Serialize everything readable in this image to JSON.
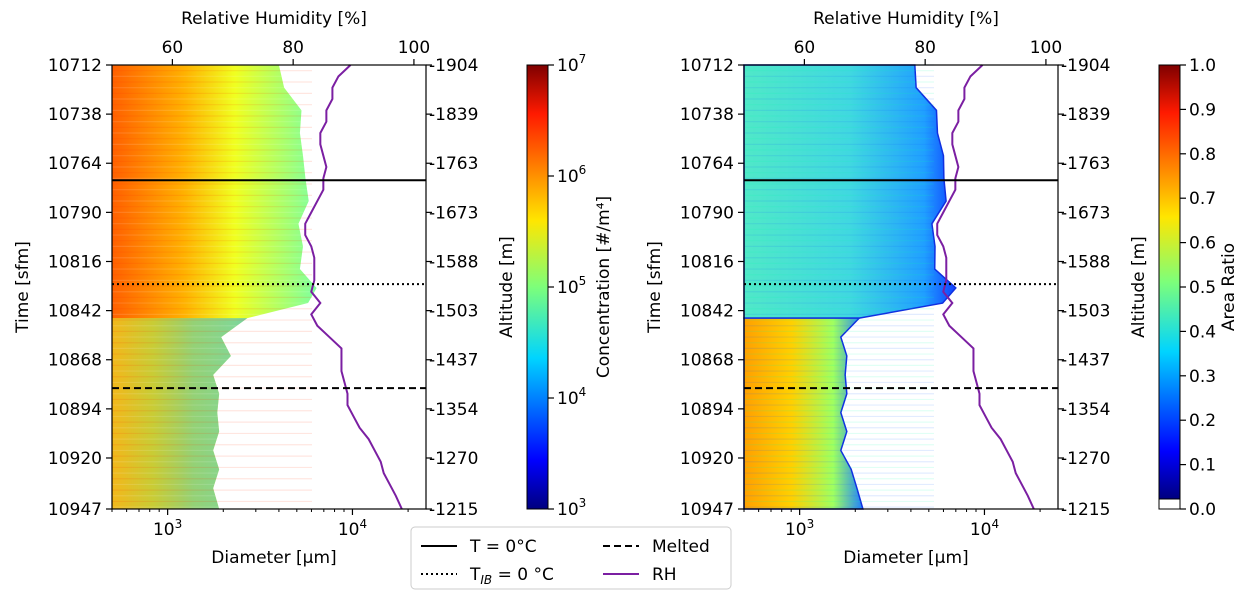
{
  "chart_data": [
    {
      "type": "heatmap",
      "panel": "left",
      "xlabel": "Diameter [µm]",
      "xscale": "log",
      "xlim": [
        500,
        25000
      ],
      "x_ticks": [
        {
          "value": 1000,
          "base": "10",
          "exp": "3"
        },
        {
          "value": 10000,
          "base": "10",
          "exp": "4"
        }
      ],
      "ylabel": "Time [sfm]",
      "ylim": [
        10947,
        10712
      ],
      "y_ticks": [
        10712,
        10738,
        10764,
        10790,
        10816,
        10842,
        10868,
        10894,
        10920,
        10947
      ],
      "right_ylabel": "Altitude [m]",
      "right_y_ticks": [
        "1904",
        "1839",
        "1763",
        "1673",
        "1588",
        "1503",
        "1437",
        "1354",
        "1270",
        "1215"
      ],
      "top_xlabel": "Relative Humidity [%]",
      "top_xlim": [
        50,
        102
      ],
      "top_x_ticks": [
        60,
        80,
        100
      ],
      "colorbar": {
        "label": "Concentration [#/m⁴]",
        "scale": "log",
        "range": [
          1000,
          10000000
        ],
        "ticks": [
          {
            "base": "10",
            "exp": "7"
          },
          {
            "base": "10",
            "exp": "6"
          },
          {
            "base": "10",
            "exp": "5"
          },
          {
            "base": "10",
            "exp": "4"
          },
          {
            "base": "10",
            "exp": "3"
          }
        ],
        "colormap": "jet"
      },
      "hlines": [
        {
          "time": 10773,
          "style": "solid"
        },
        {
          "time": 10828,
          "style": "dotted"
        },
        {
          "time": 10883,
          "style": "dashed"
        }
      ],
      "rh_curve": {
        "time": [
          10712,
          10718,
          10724,
          10730,
          10736,
          10742,
          10748,
          10754,
          10760,
          10766,
          10772,
          10778,
          10784,
          10790,
          10796,
          10802,
          10808,
          10814,
          10820,
          10826,
          10832,
          10838,
          10844,
          10850,
          10856,
          10862,
          10868,
          10874,
          10880,
          10886,
          10892,
          10898,
          10904,
          10910,
          10916,
          10922,
          10928,
          10934,
          10940,
          10947
        ],
        "rh": [
          89.5,
          87.5,
          86.5,
          86.5,
          85.5,
          85.5,
          84.5,
          84.5,
          85,
          85.5,
          85,
          85,
          84,
          83,
          82,
          82,
          83,
          83.5,
          83.5,
          83.5,
          83,
          84.5,
          83,
          84,
          86,
          88,
          88,
          88,
          88.5,
          89,
          89,
          90,
          91,
          92.5,
          93.5,
          94.5,
          95,
          96,
          97,
          98
        ]
      },
      "filled_edge": {
        "time": [
          10712,
          10724,
          10736,
          10748,
          10760,
          10772,
          10784,
          10796,
          10808,
          10820,
          10830,
          10838,
          10846,
          10856,
          10866,
          10876,
          10886,
          10896,
          10906,
          10916,
          10926,
          10936,
          10947
        ],
        "max_diameter": [
          4000,
          4600,
          5300,
          5600,
          5400,
          6000,
          5800,
          5500,
          5400,
          5600,
          6400,
          6200,
          2700,
          2100,
          2200,
          1900,
          1900,
          2000,
          1900,
          1900,
          1900,
          1900,
          1900
        ]
      }
    },
    {
      "type": "heatmap",
      "panel": "right",
      "xlabel": "Diameter [µm]",
      "xscale": "log",
      "xlim": [
        500,
        25000
      ],
      "x_ticks": [
        {
          "value": 1000,
          "base": "10",
          "exp": "3"
        },
        {
          "value": 10000,
          "base": "10",
          "exp": "4"
        }
      ],
      "ylabel": "Time [sfm]",
      "ylim": [
        10947,
        10712
      ],
      "y_ticks": [
        10712,
        10738,
        10764,
        10790,
        10816,
        10842,
        10868,
        10894,
        10920,
        10947
      ],
      "right_ylabel": "Altitude [m]",
      "right_y_ticks": [
        "1904",
        "1839",
        "1763",
        "1673",
        "1588",
        "1503",
        "1437",
        "1354",
        "1270",
        "1215"
      ],
      "top_xlabel": "Relative Humidity [%]",
      "top_xlim": [
        50,
        102
      ],
      "top_x_ticks": [
        60,
        80,
        100
      ],
      "colorbar": {
        "label": "Area Ratio",
        "scale": "linear",
        "range": [
          0,
          1
        ],
        "ticks": [
          "1.0",
          "0.9",
          "0.8",
          "0.7",
          "0.6",
          "0.5",
          "0.4",
          "0.3",
          "0.2",
          "0.1",
          "0.0"
        ],
        "colormap": "jet"
      },
      "hlines": [
        {
          "time": 10773,
          "style": "solid"
        },
        {
          "time": 10828,
          "style": "dotted"
        },
        {
          "time": 10883,
          "style": "dashed"
        }
      ],
      "rh_curve": {
        "time": [
          10712,
          10718,
          10724,
          10730,
          10736,
          10742,
          10748,
          10754,
          10760,
          10766,
          10772,
          10778,
          10784,
          10790,
          10796,
          10802,
          10808,
          10814,
          10820,
          10826,
          10832,
          10838,
          10844,
          10850,
          10856,
          10862,
          10868,
          10874,
          10880,
          10886,
          10892,
          10898,
          10904,
          10910,
          10916,
          10922,
          10928,
          10934,
          10940,
          10947
        ],
        "rh": [
          89.5,
          87.5,
          86.5,
          86.5,
          85.5,
          85.5,
          84.5,
          84.5,
          85,
          85.5,
          85,
          85,
          84,
          83,
          82,
          82,
          83,
          83.5,
          83.5,
          83.5,
          83,
          84.5,
          83,
          84,
          86,
          88,
          88,
          88,
          88.5,
          89,
          89,
          90,
          91,
          92.5,
          93.5,
          94.5,
          95,
          96,
          97,
          98
        ]
      },
      "filled_edge": {
        "time": [
          10712,
          10724,
          10736,
          10748,
          10760,
          10772,
          10784,
          10796,
          10808,
          10820,
          10830,
          10838,
          10846,
          10856,
          10866,
          10876,
          10886,
          10896,
          10906,
          10916,
          10926,
          10936,
          10947
        ],
        "max_diameter": [
          4200,
          4600,
          5500,
          6000,
          6000,
          6500,
          6200,
          5600,
          5400,
          5800,
          7000,
          6400,
          2100,
          1800,
          1800,
          1900,
          1800,
          1800,
          1800,
          1800,
          1900,
          2200,
          2200
        ]
      }
    }
  ],
  "legend": {
    "placement": "bottom-center",
    "entries": [
      {
        "label": "T = 0°C",
        "style": "solid",
        "color": "#000000"
      },
      {
        "label_main": "T",
        "label_sub": "IB",
        "label_rest": " = 0 °C",
        "style": "dotted",
        "color": "#000000"
      },
      {
        "label": "Melted",
        "style": "dashed",
        "color": "#000000"
      },
      {
        "label": "RH",
        "style": "solid",
        "color": "#7b1fa2"
      }
    ]
  },
  "colors": {
    "rh_line": "#7b1fa2",
    "hline": "#000000",
    "frame": "#000000"
  }
}
